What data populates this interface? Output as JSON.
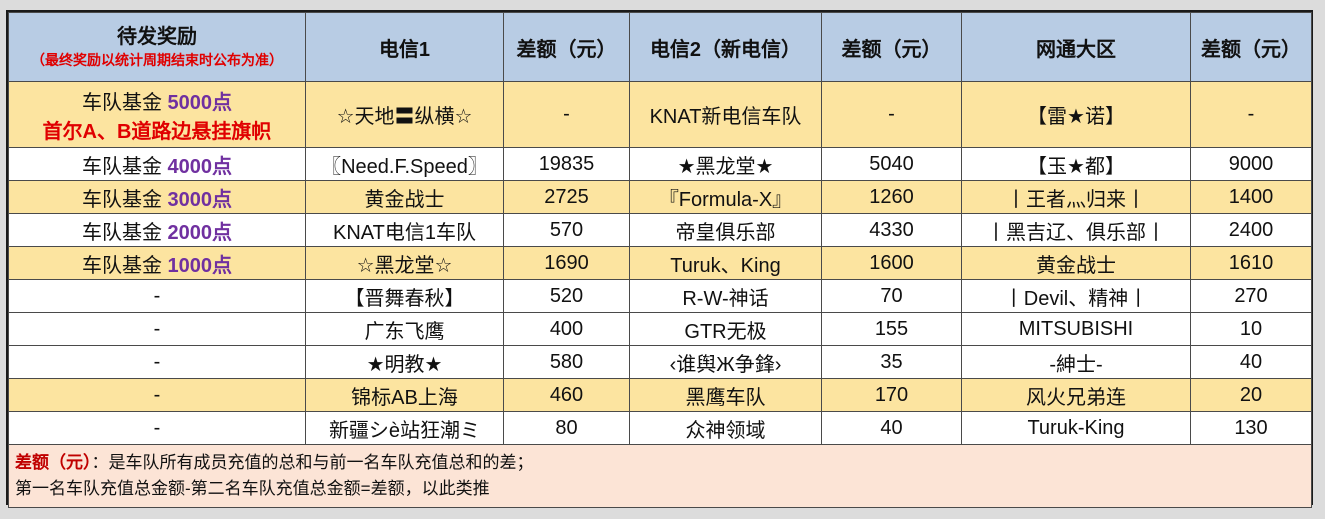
{
  "header": {
    "reward_title": "待发奖励",
    "reward_note": "（最终奖励以统计周期结束时公布为准）",
    "col_telecom1": "电信1",
    "col_diff1": "差额（元）",
    "col_telecom2": "电信2（新电信）",
    "col_diff2": "差额（元）",
    "col_netcom": "网通大区",
    "col_diff3": "差额（元）"
  },
  "rows": [
    {
      "fund_label": "车队基金 ",
      "fund_amount": "5000点",
      "flag": "首尔A、B道路边悬挂旗帜",
      "t1": "☆天地〓纵横☆",
      "d1": "-",
      "t2": "KNAT新电信车队",
      "d2": "-",
      "n": "【雷★诺】",
      "d3": "-"
    },
    {
      "fund_label": "车队基金 ",
      "fund_amount": "4000点",
      "flag": "",
      "t1": "〖Need.F.Speed〗",
      "d1": "19835",
      "t2": "★黑龙堂★",
      "d2": "5040",
      "n": "【玉★都】",
      "d3": "9000"
    },
    {
      "fund_label": "车队基金 ",
      "fund_amount": "3000点",
      "flag": "",
      "t1": "黄金战士",
      "d1": "2725",
      "t2": "『Formula-X』",
      "d2": "1260",
      "n": "丨王者灬归来丨",
      "d3": "1400"
    },
    {
      "fund_label": "车队基金 ",
      "fund_amount": "2000点",
      "flag": "",
      "t1": "KNAT电信1车队",
      "d1": "570",
      "t2": "帝皇俱乐部",
      "d2": "4330",
      "n": "丨黑吉辽、俱乐部丨",
      "d3": "2400"
    },
    {
      "fund_label": "车队基金 ",
      "fund_amount": "1000点",
      "flag": "",
      "t1": "☆黑龙堂☆",
      "d1": "1690",
      "t2": "Turuk、King",
      "d2": "1600",
      "n": "黄金战士",
      "d3": "1610"
    },
    {
      "fund_label": "-",
      "fund_amount": "",
      "flag": "",
      "t1": "【晋舞春秋】",
      "d1": "520",
      "t2": "R-W-神话",
      "d2": "70",
      "n": "丨Devil、精神丨",
      "d3": "270"
    },
    {
      "fund_label": "-",
      "fund_amount": "",
      "flag": "",
      "t1": "广东飞鹰",
      "d1": "400",
      "t2": "GTR无极",
      "d2": "155",
      "n": "MITSUBISHI",
      "d3": "10"
    },
    {
      "fund_label": "-",
      "fund_amount": "",
      "flag": "",
      "t1": "★明教★",
      "d1": "580",
      "t2": "‹谁舆Ж争鋒›",
      "d2": "35",
      "n": "-紳士-",
      "d3": "40"
    },
    {
      "fund_label": "-",
      "fund_amount": "",
      "flag": "",
      "t1": "锦标AB上海",
      "d1": "460",
      "t2": "黑鹰车队",
      "d2": "170",
      "n": "风火兄弟连",
      "d3": "20"
    },
    {
      "fund_label": "-",
      "fund_amount": "",
      "flag": "",
      "t1": "新疆シè站狂潮ミ",
      "d1": "80",
      "t2": "众神领域",
      "d2": "40",
      "n": "Turuk-King",
      "d3": "130"
    }
  ],
  "note": {
    "label": "差额（元）",
    "line1": "：是车队所有成员充值的总和与前一名车队充值总和的差；",
    "line2": "第一名车队充值总金额-第二名车队充值总金额=差额，以此类推"
  },
  "colors": {
    "header_bg": "#b8cce4",
    "yellow_row": "#fce4a0",
    "note_bg": "#fce4d6",
    "fund_amount": "#7030a0",
    "red_text": "#e00000"
  }
}
